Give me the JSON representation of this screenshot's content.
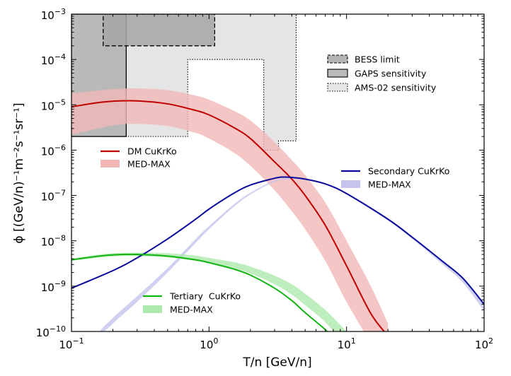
{
  "chart_data": {
    "type": "line",
    "title": "",
    "xlabel": "T/n [GeV/n]",
    "ylabel": "ϕ [(GeV/n)⁻¹m⁻²s⁻¹sr⁻¹]",
    "xscale": "log",
    "yscale": "log",
    "xlim": [
      0.1,
      100
    ],
    "ylim": [
      1e-10,
      0.001
    ],
    "x_ticks": [
      {
        "value": 0.1,
        "base": "10",
        "exp": "−1"
      },
      {
        "value": 1,
        "base": "10",
        "exp": "0"
      },
      {
        "value": 10,
        "base": "10",
        "exp": "1"
      },
      {
        "value": 100,
        "base": "10",
        "exp": "2"
      }
    ],
    "y_ticks": [
      {
        "value": 1e-10,
        "base": "10",
        "exp": "−10"
      },
      {
        "value": 1e-09,
        "base": "10",
        "exp": "−9"
      },
      {
        "value": 1e-08,
        "base": "10",
        "exp": "−8"
      },
      {
        "value": 1e-07,
        "base": "10",
        "exp": "−7"
      },
      {
        "value": 1e-06,
        "base": "10",
        "exp": "−6"
      },
      {
        "value": 1e-05,
        "base": "10",
        "exp": "−5"
      },
      {
        "value": 0.0001,
        "base": "10",
        "exp": "−4"
      },
      {
        "value": 0.001,
        "base": "10",
        "exp": "−3"
      }
    ],
    "grid": false,
    "series": [
      {
        "name": "DM CuKrKo",
        "color": "#c00000",
        "x": [
          0.1,
          0.15,
          0.2,
          0.3,
          0.5,
          0.8,
          1.0,
          1.5,
          2.0,
          3.0,
          4.0,
          5.0,
          7.0,
          10.0,
          15.0,
          20.0
        ],
        "y": [
          9e-06,
          1.1e-05,
          1.2e-05,
          1.22e-05,
          1.05e-05,
          7.5e-06,
          6e-06,
          3.2e-06,
          1.8e-06,
          5.5e-07,
          2.3e-07,
          1e-07,
          2.2e-08,
          2.8e-09,
          2.5e-10,
          8e-11
        ]
      },
      {
        "name": "MED-MAX",
        "role": "band",
        "color": "#f2b8b8",
        "x": [
          0.1,
          0.2,
          0.3,
          0.5,
          0.8,
          1.0,
          1.5,
          2.0,
          3.0,
          4.0,
          5.0,
          7.0,
          10.0,
          15.0,
          20.0
        ],
        "y_low": [
          2.2e-06,
          3.5e-06,
          3.8e-06,
          3.4e-06,
          2.4e-06,
          1.8e-06,
          9e-07,
          4.5e-07,
          1.3e-07,
          4.5e-08,
          1.8e-08,
          3.6e-09,
          4.5e-10,
          6e-11,
          3e-11
        ],
        "y_high": [
          1.8e-05,
          2.2e-05,
          2.3e-05,
          2.1e-05,
          1.6e-05,
          1.3e-05,
          7.5e-06,
          4.5e-06,
          1.5e-06,
          6e-07,
          2.8e-07,
          7e-08,
          1e-08,
          1e-09,
          1.5e-10
        ]
      },
      {
        "name": "Secondary CuKrKo",
        "color": "#0a0a9c",
        "x": [
          0.1,
          0.2,
          0.3,
          0.5,
          0.8,
          1.0,
          1.5,
          2.0,
          3.0,
          3.5,
          4.0,
          5.0,
          7.0,
          10.0,
          20.0,
          30.0,
          50.0,
          70.0,
          100.0
        ],
        "y": [
          9e-10,
          2.2e-09,
          4.2e-09,
          1.1e-08,
          3e-08,
          5e-08,
          1.1e-07,
          1.7e-07,
          2.4e-07,
          2.55e-07,
          2.5e-07,
          2.3e-07,
          1.8e-07,
          1.1e-07,
          3e-08,
          1.2e-08,
          3.5e-09,
          1.5e-09,
          4e-10
        ]
      },
      {
        "name": "MED-MAX",
        "role": "band",
        "color": "#c4c4ee",
        "x": [
          0.1,
          0.15,
          0.2,
          0.3,
          0.5,
          0.8,
          1.0,
          1.5,
          2.0,
          3.0,
          4.0,
          5.0,
          7.0,
          10.0,
          20.0,
          30.0,
          50.0,
          70.0,
          100.0
        ],
        "y_low": [
          1e-11,
          6e-11,
          1.5e-10,
          4.5e-10,
          2e-09,
          9e-09,
          1.8e-08,
          5.5e-08,
          1.05e-07,
          2e-07,
          2.3e-07,
          2.2e-07,
          1.75e-07,
          1.05e-07,
          2.8e-08,
          1.1e-08,
          3e-09,
          1.2e-09,
          2.8e-10
        ],
        "y_high": [
          1.5e-11,
          8e-11,
          2e-10,
          6e-10,
          2.5e-09,
          1.1e-08,
          2.1e-08,
          6.2e-08,
          1.15e-07,
          2.15e-07,
          2.45e-07,
          2.35e-07,
          1.85e-07,
          1.12e-07,
          3.1e-08,
          1.25e-08,
          3.6e-09,
          1.5e-09,
          3.8e-10
        ]
      },
      {
        "name": "Tertiary  CuKrKo",
        "color": "#11b411",
        "x": [
          0.1,
          0.15,
          0.2,
          0.3,
          0.5,
          0.8,
          1.0,
          1.5,
          2.0,
          3.0,
          4.0,
          5.0,
          7.0,
          8.5
        ],
        "y": [
          3.8e-09,
          4.5e-09,
          4.9e-09,
          5e-09,
          4.6e-09,
          3.8e-09,
          3.3e-09,
          2.4e-09,
          1.75e-09,
          9e-10,
          4.8e-10,
          2.6e-10,
          1.1e-10,
          6e-11
        ]
      },
      {
        "name": "MED-MAX",
        "role": "band",
        "color": "#aee9ae",
        "x": [
          0.1,
          0.15,
          0.2,
          0.3,
          0.5,
          0.8,
          1.0,
          1.5,
          2.0,
          3.0,
          4.0,
          5.0,
          7.0,
          10.0
        ],
        "y_low": [
          3.6e-09,
          4.2e-09,
          4.5e-09,
          4.6e-09,
          4.3e-09,
          3.6e-09,
          3.2e-09,
          2.5e-09,
          1.9e-09,
          1.1e-09,
          6.5e-10,
          3.8e-10,
          1.6e-10,
          4.5e-11
        ],
        "y_high": [
          4e-09,
          4.9e-09,
          5.3e-09,
          5.5e-09,
          5.3e-09,
          4.7e-09,
          4.2e-09,
          3.4e-09,
          2.7e-09,
          1.7e-09,
          1.1e-09,
          6.8e-10,
          3e-10,
          1e-10
        ]
      }
    ],
    "limit_regions": [
      {
        "name": "BESS limit",
        "style": "dashed",
        "fill": "#a6a6a6",
        "x": [
          0.17,
          1.1
        ],
        "y": [
          0.0002,
          0.001
        ]
      },
      {
        "name": "GAPS sensitivity",
        "style": "solid",
        "fill": "#b3b3b3",
        "x": [
          0.1,
          0.25
        ],
        "y": [
          2e-06,
          0.001
        ]
      },
      {
        "name": "AMS-02 sensitivity",
        "style": "dotted",
        "fill": "#dcdcdc",
        "steps": [
          [
            0.17,
            2e-06
          ],
          [
            0.7,
            2e-06
          ],
          [
            0.7,
            0.0001
          ],
          [
            2.5,
            0.0001
          ],
          [
            2.5,
            1e-06
          ],
          [
            3.2,
            1e-06
          ],
          [
            3.2,
            1.6e-06
          ],
          [
            4.3,
            1.6e-06
          ],
          [
            4.3,
            0.001
          ]
        ]
      }
    ],
    "legends": [
      {
        "position": "top-right",
        "entries": [
          {
            "label": "BESS limit"
          },
          {
            "label": "GAPS sensitivity"
          },
          {
            "label": "AMS-02 sensitivity"
          }
        ]
      },
      {
        "position": "middle-left",
        "entries": [
          {
            "label": "DM CuKrKo",
            "color": "#c00000"
          },
          {
            "label": "MED-MAX",
            "color": "#f2b8b8"
          }
        ]
      },
      {
        "position": "middle-right",
        "entries": [
          {
            "label": "Secondary CuKrKo",
            "color": "#0a0a9c"
          },
          {
            "label": "MED-MAX",
            "color": "#c4c4ee"
          }
        ]
      },
      {
        "position": "bottom-left",
        "entries": [
          {
            "label": "Tertiary  CuKrKo",
            "color": "#11b411"
          },
          {
            "label": "MED-MAX",
            "color": "#aee9ae"
          }
        ]
      }
    ]
  }
}
